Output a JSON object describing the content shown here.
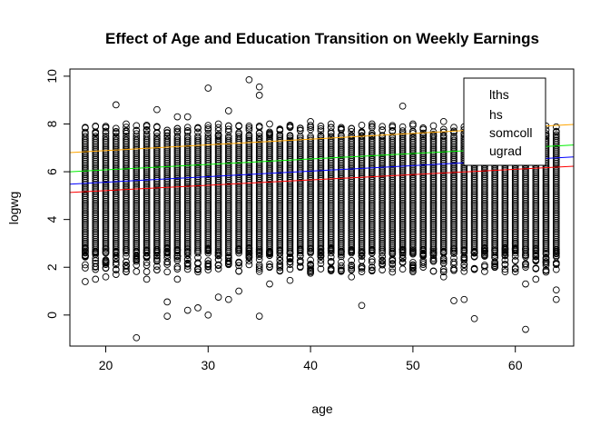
{
  "chart_data": {
    "type": "scatter",
    "title": "Effect of Age and Education Transition on Weekly Earnings",
    "xlabel": "age",
    "ylabel": "logwg",
    "xlim": [
      16.5,
      65.7
    ],
    "ylim": [
      -1.3,
      10.3
    ],
    "x_ticks": [
      20,
      30,
      40,
      50,
      60
    ],
    "y_ticks": [
      0,
      2,
      4,
      6,
      8,
      10
    ],
    "grid": false,
    "legend_position": "top-right",
    "point_color": "#000000",
    "point_style": "open-circle",
    "age_range": [
      18,
      64
    ],
    "band": {
      "low": 2.6,
      "high": 7.5
    },
    "series": [
      {
        "name": "lths",
        "color": "#ff0000",
        "x": [
          16.5,
          65.7
        ],
        "y": [
          5.13,
          6.23
        ]
      },
      {
        "name": "hs",
        "color": "#0000ff",
        "x": [
          16.5,
          65.7
        ],
        "y": [
          5.48,
          6.62
        ]
      },
      {
        "name": "somcoll",
        "color": "#00ee00",
        "x": [
          16.5,
          65.7
        ],
        "y": [
          6.0,
          7.12
        ]
      },
      {
        "name": "ugrad",
        "color": "#ffa500",
        "x": [
          16.5,
          65.7
        ],
        "y": [
          6.8,
          7.98
        ]
      }
    ],
    "outliers": [
      [
        23,
        -0.95
      ],
      [
        34,
        9.85
      ],
      [
        35,
        9.55
      ],
      [
        35,
        9.2
      ],
      [
        30,
        9.5
      ],
      [
        49,
        8.75
      ],
      [
        21,
        8.8
      ],
      [
        28,
        8.3
      ],
      [
        32,
        8.55
      ],
      [
        25,
        8.6
      ],
      [
        27,
        8.3
      ],
      [
        26,
        0.55
      ],
      [
        26,
        -0.05
      ],
      [
        28,
        0.2
      ],
      [
        29,
        0.3
      ],
      [
        30,
        0.0
      ],
      [
        31,
        0.75
      ],
      [
        35,
        -0.05
      ],
      [
        32,
        0.65
      ],
      [
        45,
        0.4
      ],
      [
        54,
        0.6
      ],
      [
        55,
        0.65
      ],
      [
        56,
        -0.15
      ],
      [
        61,
        -0.6
      ],
      [
        64,
        0.65
      ],
      [
        64,
        1.05
      ],
      [
        61,
        1.3
      ],
      [
        62,
        1.5
      ],
      [
        58,
        2.0
      ],
      [
        59,
        2.8
      ],
      [
        63,
        1.8
      ],
      [
        57,
        2.5
      ],
      [
        18,
        1.4
      ],
      [
        19,
        1.5
      ],
      [
        20,
        1.6
      ],
      [
        21,
        1.7
      ],
      [
        22,
        2.05
      ],
      [
        24,
        1.5
      ],
      [
        25,
        2.3
      ],
      [
        27,
        1.5
      ],
      [
        33,
        1.0
      ],
      [
        36,
        1.3
      ],
      [
        38,
        1.45
      ],
      [
        40,
        1.75
      ],
      [
        42,
        1.9
      ],
      [
        44,
        1.6
      ],
      [
        46,
        2.0
      ],
      [
        48,
        1.8
      ],
      [
        50,
        2.2
      ],
      [
        53,
        1.6
      ],
      [
        52,
        2.5
      ],
      [
        60,
        3.0
      ],
      [
        45,
        7.95
      ],
      [
        50,
        8.0
      ],
      [
        53,
        8.1
      ],
      [
        40,
        8.1
      ],
      [
        38,
        7.9
      ],
      [
        43,
        7.85
      ],
      [
        36,
        8.0
      ],
      [
        56,
        7.7
      ],
      [
        58,
        7.6
      ],
      [
        60,
        7.55
      ],
      [
        62,
        7.45
      ],
      [
        20,
        7.9
      ],
      [
        19,
        7.6
      ],
      [
        22,
        8.0
      ],
      [
        24,
        7.9
      ],
      [
        31,
        8.0
      ],
      [
        46,
        8.0
      ],
      [
        42,
        8.0
      ]
    ]
  },
  "legend": {
    "items": [
      "lths",
      "hs",
      "somcoll",
      "ugrad"
    ]
  }
}
